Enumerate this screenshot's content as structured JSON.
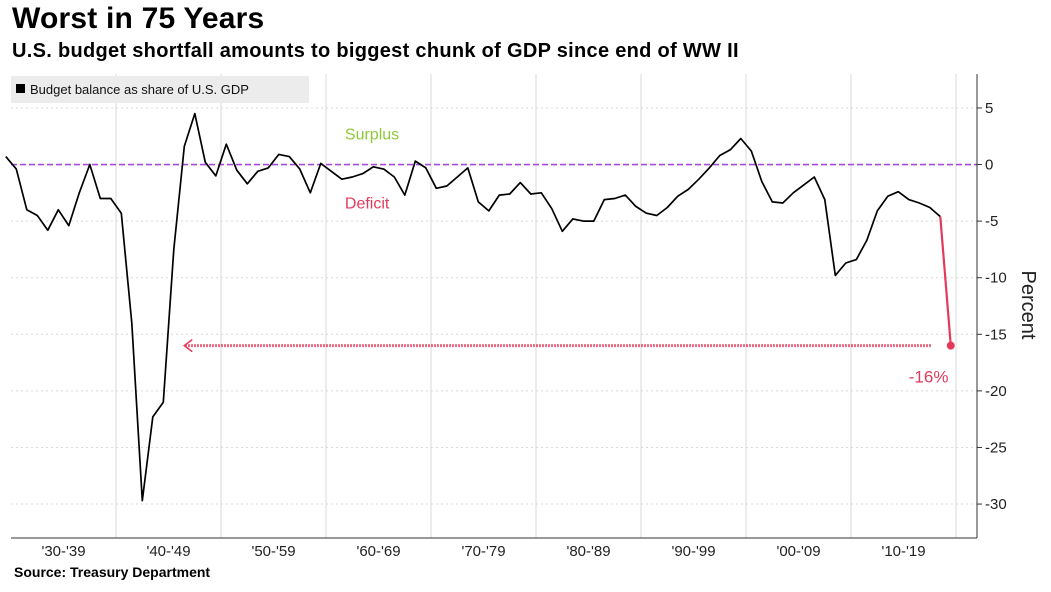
{
  "title": "Worst in 75 Years",
  "subtitle": "U.S. budget shortfall amounts to biggest chunk of GDP since end of WW II",
  "source": "Source: Treasury Department",
  "colors": {
    "line": "#000000",
    "zero": "#a64ddb",
    "surplus": "#8fc93a",
    "deficit": "#e23a5b",
    "grid": "#d9d9d9"
  },
  "chart_data": {
    "type": "line",
    "title": "Worst in 75 Years",
    "subtitle": "U.S. budget shortfall amounts to biggest chunk of GDP since end of WW II",
    "legend": [
      "Budget balance as share of U.S. GDP"
    ],
    "ylabel": "Percent",
    "xlabel": "",
    "ylim": [
      -33,
      8
    ],
    "xlim": [
      1929.5,
      2021.5
    ],
    "yticks": [
      5,
      0,
      -5,
      -10,
      -15,
      -20,
      -25,
      -30
    ],
    "ytick_labels": [
      "5",
      "0",
      "-5",
      "-10",
      "-15",
      "-20",
      "-25",
      "-30"
    ],
    "decade_labels": [
      "'30-'39",
      "'40-'49",
      "'50-'59",
      "'60-'69",
      "'70-'79",
      "'80-'89",
      "'90-'99",
      "'00-'09",
      "'10-'19"
    ],
    "annotations": {
      "surplus": "Surplus",
      "deficit": "Deficit",
      "latest": "-16%"
    },
    "series": [
      {
        "name": "Budget balance as share of U.S. GDP",
        "x": [
          1929,
          1930,
          1931,
          1932,
          1933,
          1934,
          1935,
          1936,
          1937,
          1938,
          1939,
          1940,
          1941,
          1942,
          1943,
          1944,
          1945,
          1946,
          1947,
          1948,
          1949,
          1950,
          1951,
          1952,
          1953,
          1954,
          1955,
          1956,
          1957,
          1958,
          1959,
          1960,
          1961,
          1962,
          1963,
          1964,
          1965,
          1966,
          1967,
          1968,
          1969,
          1970,
          1971,
          1972,
          1973,
          1974,
          1975,
          1976,
          1977,
          1978,
          1979,
          1980,
          1981,
          1982,
          1983,
          1984,
          1985,
          1986,
          1987,
          1988,
          1989,
          1990,
          1991,
          1992,
          1993,
          1994,
          1995,
          1996,
          1997,
          1998,
          1999,
          2000,
          2001,
          2002,
          2003,
          2004,
          2005,
          2006,
          2007,
          2008,
          2009,
          2010,
          2011,
          2012,
          2013,
          2014,
          2015,
          2016,
          2017,
          2018,
          2019
        ],
        "values": [
          0.7,
          -0.4,
          -4.0,
          -4.5,
          -5.8,
          -4.0,
          -5.4,
          -2.5,
          0.0,
          -3.0,
          -3.0,
          -4.3,
          -14.0,
          -29.7,
          -22.3,
          -21.0,
          -7.5,
          1.6,
          4.5,
          0.2,
          -1.0,
          1.8,
          -0.5,
          -1.7,
          -0.6,
          -0.3,
          0.9,
          0.7,
          -0.4,
          -2.5,
          0.1,
          -0.6,
          -1.3,
          -1.1,
          -0.8,
          -0.2,
          -0.4,
          -1.1,
          -2.7,
          0.3,
          -0.3,
          -2.1,
          -1.9,
          -1.1,
          -0.3,
          -3.3,
          -4.1,
          -2.7,
          -2.6,
          -1.6,
          -2.6,
          -2.5,
          -3.9,
          -5.9,
          -4.8,
          -5.0,
          -5.0,
          -3.1,
          -3.0,
          -2.7,
          -3.7,
          -4.3,
          -4.5,
          -3.8,
          -2.8,
          -2.2,
          -1.3,
          -0.3,
          0.8,
          1.3,
          2.3,
          1.2,
          -1.5,
          -3.3,
          -3.4,
          -2.5,
          -1.8,
          -1.1,
          -3.1,
          -9.8,
          -8.7,
          -8.4,
          -6.7,
          -4.1,
          -2.8,
          -2.4,
          -3.1,
          -3.4,
          -3.8,
          -4.6,
          -16.0
        ],
        "highlight_from": 2018
      }
    ]
  }
}
